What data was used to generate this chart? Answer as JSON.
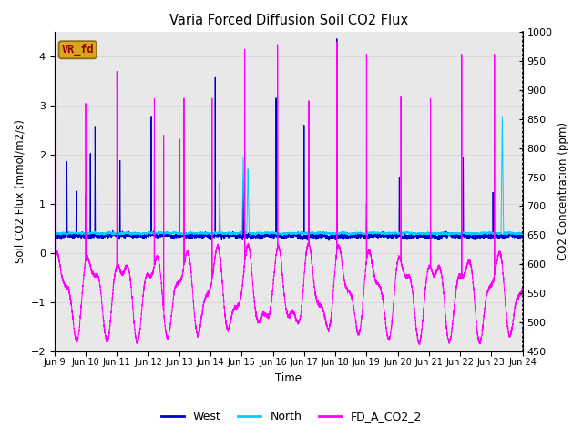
{
  "title": "Varia Forced Diffusion Soil CO2 Flux",
  "xlabel": "Time",
  "ylabel_left": "Soil CO2 Flux (mmol/m2/s)",
  "ylabel_right": "CO2 Concentration (ppm)",
  "ylim_left": [
    -2.0,
    4.5
  ],
  "ylim_right": [
    450,
    1000
  ],
  "xtick_labels": [
    "Jun 9",
    "Jun 10",
    "Jun 11",
    "Jun 12",
    "Jun 13",
    "Jun 14",
    "Jun 15",
    "Jun 16",
    "Jun 17",
    "Jun 18",
    "Jun 19",
    "Jun 20",
    "Jun 21",
    "Jun 22",
    "Jun 23",
    "Jun 24"
  ],
  "color_west": "#0000CD",
  "color_north": "#00CCFF",
  "color_co2": "#FF00FF",
  "legend_labels": [
    "West",
    "North",
    "FD_A_CO2_2"
  ],
  "annotation_text": "VR_fd",
  "annotation_color": "#8B0000",
  "annotation_bg": "#DAA520",
  "grid_color": "#D8D8D8",
  "plot_bg": "#E8E8E8",
  "fig_bg": "#FFFFFF",
  "n_points": 7200,
  "seed": 42
}
